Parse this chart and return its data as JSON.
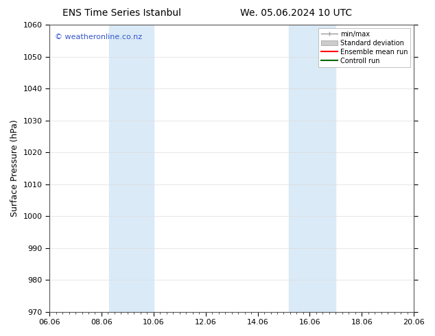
{
  "title_left": "ENS Time Series Istanbul",
  "title_right": "We. 05.06.2024 10 UTC",
  "ylabel": "Surface Pressure (hPa)",
  "ylim": [
    970,
    1060
  ],
  "yticks": [
    970,
    980,
    990,
    1000,
    1010,
    1020,
    1030,
    1040,
    1050,
    1060
  ],
  "xlim": [
    0,
    14
  ],
  "xtick_positions": [
    0,
    2,
    4,
    6,
    8,
    10,
    12,
    14
  ],
  "xtick_labels": [
    "06.06",
    "08.06",
    "10.06",
    "12.06",
    "14.06",
    "16.06",
    "18.06",
    "20.06"
  ],
  "shaded_bands": [
    {
      "x_start": 2.3,
      "x_end": 4.0
    },
    {
      "x_start": 9.2,
      "x_end": 11.0
    }
  ],
  "band_color": "#daeaf7",
  "watermark_text": "© weatheronline.co.nz",
  "watermark_color": "#3355cc",
  "legend_items": [
    {
      "label": "min/max",
      "color": "#999999"
    },
    {
      "label": "Standard deviation",
      "color": "#cccccc"
    },
    {
      "label": "Ensemble mean run",
      "color": "#ff0000"
    },
    {
      "label": "Controll run",
      "color": "#006600"
    }
  ],
  "bg_color": "#ffffff",
  "spine_color": "#555555",
  "grid_color": "#dddddd",
  "title_fontsize": 10,
  "tick_fontsize": 8,
  "ylabel_fontsize": 9,
  "legend_fontsize": 7,
  "watermark_fontsize": 8
}
